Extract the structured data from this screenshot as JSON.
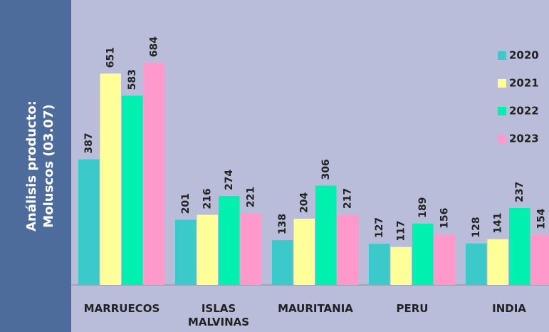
{
  "sidebar": {
    "lines": [
      "Análisis producto:",
      "Moluscos (03.07)"
    ]
  },
  "chart_data": {
    "type": "bar",
    "categories": [
      "MARRUECOS",
      "ISLAS MALVINAS",
      "MAURITANIA",
      "PERU",
      "INDIA"
    ],
    "series": [
      {
        "name": "2020",
        "color": "#3cc9c9",
        "values": [
          387,
          201,
          138,
          127,
          128
        ]
      },
      {
        "name": "2021",
        "color": "#ffff99",
        "values": [
          651,
          216,
          204,
          117,
          141
        ]
      },
      {
        "name": "2022",
        "color": "#00f0b0",
        "values": [
          583,
          274,
          306,
          189,
          237
        ]
      },
      {
        "name": "2023",
        "color": "#ff99cc",
        "values": [
          684,
          221,
          217,
          156,
          154
        ]
      }
    ],
    "ylim": [
      0,
      700
    ],
    "legend": "upper right"
  }
}
